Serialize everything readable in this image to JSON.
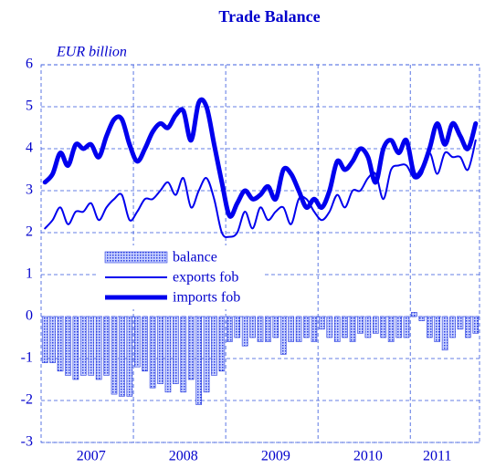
{
  "chart_data": {
    "type": "bar_line",
    "title": "Trade Balance",
    "y_axis_label": "EUR billion",
    "categories": [
      null,
      null,
      null,
      null,
      null,
      null,
      "2007",
      null,
      null,
      null,
      null,
      null,
      null,
      null,
      null,
      null,
      null,
      null,
      "2008",
      null,
      null,
      null,
      null,
      null,
      null,
      null,
      null,
      null,
      null,
      null,
      "2009",
      null,
      null,
      null,
      null,
      null,
      null,
      null,
      null,
      null,
      null,
      null,
      "2010",
      null,
      null,
      null,
      null,
      null,
      null,
      null,
      null,
      "2011",
      null,
      null,
      null,
      null,
      null
    ],
    "series": [
      {
        "name": "balance",
        "kind": "bar",
        "color": "#2b3fe0",
        "values": [
          -1.1,
          -1.1,
          -1.3,
          -1.4,
          -1.5,
          -1.4,
          -1.4,
          -1.5,
          -1.4,
          -1.85,
          -1.9,
          -1.9,
          -1.2,
          -1.3,
          -1.7,
          -1.6,
          -1.8,
          -1.6,
          -1.8,
          -1.5,
          -2.1,
          -1.8,
          -1.4,
          -1.3,
          -0.6,
          -0.5,
          -0.7,
          -0.5,
          -0.6,
          -0.6,
          -0.5,
          -0.9,
          -0.6,
          -0.6,
          -0.5,
          -0.6,
          -0.3,
          -0.5,
          -0.6,
          -0.5,
          -0.6,
          -0.4,
          -0.5,
          -0.4,
          -0.5,
          -0.6,
          -0.5,
          -0.5,
          0.1,
          -0.1,
          -0.5,
          -0.6,
          -0.8,
          -0.5,
          -0.3,
          -0.5,
          -0.4
        ]
      },
      {
        "name": "exports fob",
        "kind": "line",
        "color": "#0000ee",
        "width": 2,
        "values": [
          2.1,
          2.3,
          2.6,
          2.2,
          2.5,
          2.5,
          2.7,
          2.3,
          2.6,
          2.8,
          2.9,
          2.3,
          2.5,
          2.8,
          2.8,
          3.0,
          3.2,
          2.9,
          3.3,
          2.6,
          3.0,
          3.3,
          2.8,
          2.0,
          1.9,
          2.0,
          2.5,
          2.1,
          2.6,
          2.3,
          2.5,
          2.6,
          2.2,
          2.8,
          2.8,
          2.5,
          2.3,
          2.5,
          2.9,
          2.6,
          3.0,
          3.0,
          3.3,
          3.4,
          2.8,
          3.5,
          3.6,
          3.6,
          3.3,
          3.4,
          3.9,
          3.4,
          3.9,
          3.8,
          3.8,
          3.5,
          4.2
        ]
      },
      {
        "name": "imports fob",
        "kind": "line",
        "color": "#0000ee",
        "width": 5,
        "values": [
          3.2,
          3.4,
          3.9,
          3.6,
          4.1,
          4.0,
          4.1,
          3.8,
          4.3,
          4.7,
          4.7,
          4.1,
          3.7,
          4.0,
          4.4,
          4.6,
          4.5,
          4.8,
          4.9,
          4.2,
          5.1,
          5.0,
          4.1,
          3.2,
          2.4,
          2.7,
          3.0,
          2.8,
          2.9,
          3.1,
          2.8,
          3.5,
          3.4,
          3.0,
          2.6,
          2.8,
          2.6,
          3.0,
          3.7,
          3.5,
          3.7,
          4.0,
          3.8,
          3.2,
          4.0,
          4.2,
          3.9,
          4.2,
          3.4,
          3.5,
          4.0,
          4.6,
          4.1,
          4.6,
          4.3,
          4.0,
          4.6
        ]
      }
    ],
    "ylim": [
      -3,
      6
    ],
    "yticks": [
      -3,
      -2,
      -1,
      0,
      1,
      2,
      3,
      4,
      5,
      6
    ],
    "grid": true,
    "legend": "center-left"
  }
}
